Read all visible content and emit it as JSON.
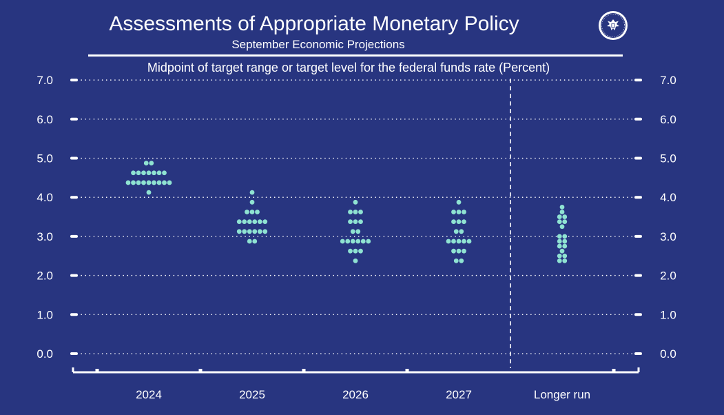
{
  "header": {
    "title": "Assessments of Appropriate Monetary Policy",
    "subtitle": "September Economic Projections",
    "caption": "Midpoint of target range or target level for the federal funds rate (Percent)"
  },
  "seal_icon": "federal-reserve-seal-icon",
  "colors": {
    "background": "#283580",
    "dot": "#8fe3d2",
    "text": "#ffffff"
  },
  "chart_data": {
    "type": "scatter",
    "title": "Assessments of Appropriate Monetary Policy",
    "subtitle": "September Economic Projections",
    "ylabel": "Midpoint of target range or target level for the federal funds rate (Percent)",
    "xlabel": "",
    "ylim": [
      0,
      7
    ],
    "yticks": [
      0,
      1,
      2,
      3,
      4,
      5,
      6,
      7
    ],
    "ytick_labels": [
      "0.0",
      "1.0",
      "2.0",
      "3.0",
      "4.0",
      "5.0",
      "6.0",
      "7.0"
    ],
    "grid": "dotted",
    "categories": [
      "2024",
      "2025",
      "2026",
      "2027",
      "Longer run"
    ],
    "separator_after": "2027",
    "dots": [
      {
        "category": "2024",
        "counts": [
          {
            "value": 4.875,
            "n": 2
          },
          {
            "value": 4.625,
            "n": 7
          },
          {
            "value": 4.375,
            "n": 9
          },
          {
            "value": 4.125,
            "n": 1
          }
        ]
      },
      {
        "category": "2025",
        "counts": [
          {
            "value": 4.125,
            "n": 1
          },
          {
            "value": 3.875,
            "n": 1
          },
          {
            "value": 3.625,
            "n": 3
          },
          {
            "value": 3.375,
            "n": 6
          },
          {
            "value": 3.125,
            "n": 6
          },
          {
            "value": 2.875,
            "n": 2
          }
        ]
      },
      {
        "category": "2026",
        "counts": [
          {
            "value": 3.875,
            "n": 1
          },
          {
            "value": 3.625,
            "n": 3
          },
          {
            "value": 3.375,
            "n": 3
          },
          {
            "value": 3.125,
            "n": 2
          },
          {
            "value": 2.875,
            "n": 6
          },
          {
            "value": 2.625,
            "n": 3
          },
          {
            "value": 2.375,
            "n": 1
          }
        ]
      },
      {
        "category": "2027",
        "counts": [
          {
            "value": 3.875,
            "n": 1
          },
          {
            "value": 3.625,
            "n": 3
          },
          {
            "value": 3.375,
            "n": 3
          },
          {
            "value": 3.125,
            "n": 2
          },
          {
            "value": 2.875,
            "n": 5
          },
          {
            "value": 2.625,
            "n": 3
          },
          {
            "value": 2.375,
            "n": 2
          }
        ]
      },
      {
        "category": "Longer run",
        "counts": [
          {
            "value": 3.75,
            "n": 1
          },
          {
            "value": 3.625,
            "n": 1
          },
          {
            "value": 3.5,
            "n": 2
          },
          {
            "value": 3.375,
            "n": 2
          },
          {
            "value": 3.25,
            "n": 1
          },
          {
            "value": 3.0,
            "n": 2
          },
          {
            "value": 2.875,
            "n": 2
          },
          {
            "value": 2.75,
            "n": 2
          },
          {
            "value": 2.625,
            "n": 1
          },
          {
            "value": 2.5,
            "n": 2
          },
          {
            "value": 2.375,
            "n": 2
          }
        ]
      }
    ]
  }
}
